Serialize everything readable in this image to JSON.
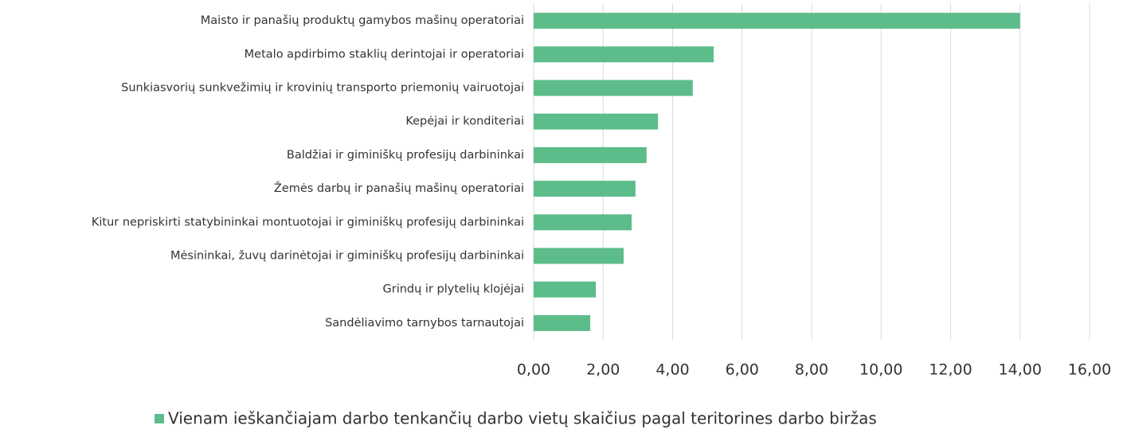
{
  "chart_data": {
    "type": "barh",
    "categories": [
      "Maisto ir panašių produktų gamybos mašinų operatoriai",
      "Metalo apdirbimo staklių derintojai ir operatoriai",
      "Sunkiasvorių sunkvežimių ir krovinių transporto priemonių vairuotojai",
      "Kepėjai ir konditeriai",
      "Baldžiai ir giminiškų profesijų darbininkai",
      "Žemės darbų ir panašių mašinų operatoriai",
      "Kitur nepriskirti statybininkai montuotojai ir giminiškų profesijų darbininkai",
      "Mėsininkai, žuvų darinėtojai ir giminiškų profesijų darbininkai",
      "Grindų ir plytelių klojėjai",
      "Sandėliavimo tarnybos tarnautojai"
    ],
    "series": [
      {
        "name": "Vienam ieškančiajam darbo tenkančių darbo vietų skaičius pagal teritorines darbo biržas",
        "color": "#5cbd8a",
        "values": [
          14.0,
          5.18,
          4.58,
          3.58,
          3.25,
          2.93,
          2.82,
          2.59,
          1.79,
          1.63
        ]
      }
    ],
    "xlim": [
      0,
      16
    ],
    "xticks": [
      {
        "value": 0,
        "label": "0,00"
      },
      {
        "value": 2,
        "label": "2,00"
      },
      {
        "value": 4,
        "label": "4,00"
      },
      {
        "value": 6,
        "label": "6,00"
      },
      {
        "value": 8,
        "label": "8,00"
      },
      {
        "value": 10,
        "label": "10,00"
      },
      {
        "value": 12,
        "label": "12,00"
      },
      {
        "value": 14,
        "label": "14,00"
      },
      {
        "value": 16,
        "label": "16,00"
      }
    ],
    "grid": true,
    "legend": "bottom"
  }
}
